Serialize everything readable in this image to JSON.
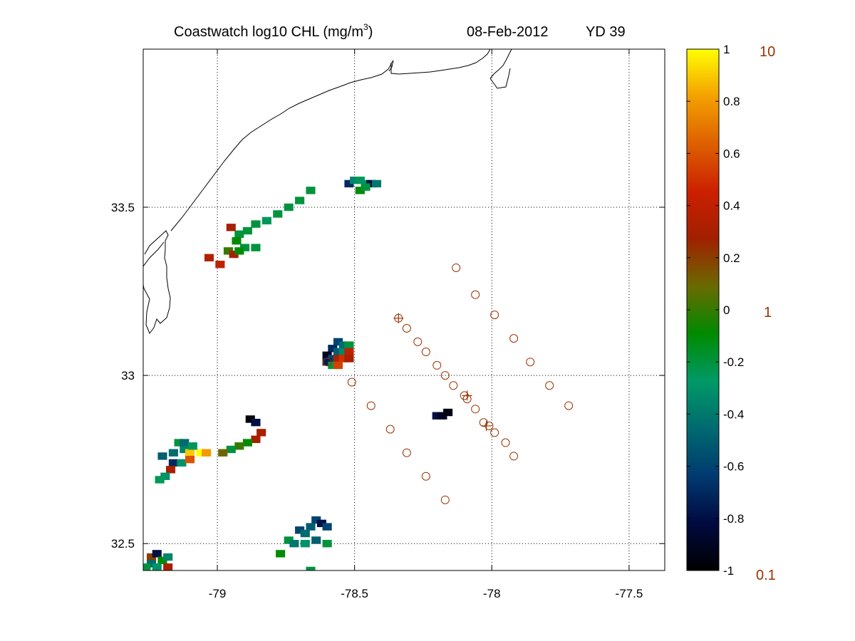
{
  "title": {
    "main": "Coastwatch  log10  CHL (mg/m",
    "superscript": "3",
    "close": ")",
    "date": "08-Feb-2012",
    "yearday": "YD 39"
  },
  "map": {
    "lon_range": [
      -79.27,
      -77.37
    ],
    "lat_range": [
      32.42,
      33.97
    ],
    "x_ticks": [
      -79,
      -78.5,
      -78,
      -77.5
    ],
    "x_tick_labels": [
      "-79",
      "-78.5",
      "-78",
      "-77.5"
    ],
    "y_ticks": [
      32.5,
      33,
      33.5
    ],
    "y_tick_labels": [
      "32.5",
      "33",
      "33.5"
    ],
    "grid": "dotted",
    "coastline_color": "#000000",
    "station_color": "#993300",
    "stations": [
      [
        -78.13,
        33.32
      ],
      [
        -78.06,
        33.24
      ],
      [
        -77.99,
        33.18
      ],
      [
        -77.92,
        33.11
      ],
      [
        -77.86,
        33.04
      ],
      [
        -77.79,
        32.97
      ],
      [
        -77.72,
        32.91
      ],
      [
        -78.34,
        33.17
      ],
      [
        -78.31,
        33.14
      ],
      [
        -78.27,
        33.1
      ],
      [
        -78.24,
        33.07
      ],
      [
        -78.2,
        33.03
      ],
      [
        -78.17,
        33.0
      ],
      [
        -78.14,
        32.97
      ],
      [
        -78.1,
        32.94
      ],
      [
        -78.09,
        32.93
      ],
      [
        -78.06,
        32.9
      ],
      [
        -78.03,
        32.86
      ],
      [
        -78.01,
        32.85
      ],
      [
        -77.99,
        32.83
      ],
      [
        -77.95,
        32.8
      ],
      [
        -77.92,
        32.76
      ],
      [
        -78.51,
        32.98
      ],
      [
        -78.44,
        32.91
      ],
      [
        -78.37,
        32.84
      ],
      [
        -78.31,
        32.77
      ],
      [
        -78.24,
        32.7
      ],
      [
        -78.17,
        32.63
      ],
      [
        -78.6,
        33.04
      ]
    ],
    "cross_stations": [
      [
        -78.34,
        33.17
      ],
      [
        -78.09,
        32.94
      ],
      [
        -78.02,
        32.85
      ]
    ]
  },
  "colorbar": {
    "ticks": [
      1,
      0.8,
      0.6,
      0.4,
      0.2,
      0,
      -0.2,
      -0.4,
      -0.6,
      -0.8,
      -1
    ],
    "tick_labels": [
      "1",
      "0.8",
      "0.6",
      "0.4",
      "0.2",
      "0",
      "-0.2",
      "-0.4",
      "-0.6",
      "-0.8",
      "-1"
    ],
    "range": [
      -1,
      1
    ],
    "right_labels": {
      "top": "10",
      "middle": "1",
      "bottom": "0.1"
    },
    "right_label_color": "#993300",
    "stops": [
      "#000000",
      "#000a40",
      "#003a70",
      "#006a70",
      "#009966",
      "#008a00",
      "#6a6a00",
      "#a02000",
      "#cc2000",
      "#dd6000",
      "#f4a000",
      "#ffff00"
    ]
  },
  "chart_data": {
    "type": "heatmap",
    "title": "Coastwatch  log10  CHL (mg/m3)   08-Feb-2012   YD 39",
    "xlim": [
      -79.27,
      -77.37
    ],
    "ylim": [
      32.42,
      33.97
    ],
    "cell_lon": 0.034,
    "cell_lat": 0.022,
    "cells": [
      [
        -78.52,
        33.57,
        -0.7
      ],
      [
        -78.5,
        33.58,
        -0.35
      ],
      [
        -78.48,
        33.58,
        -0.25
      ],
      [
        -78.46,
        33.57,
        -0.3
      ],
      [
        -78.44,
        33.57,
        -0.8
      ],
      [
        -78.42,
        33.57,
        -0.4
      ],
      [
        -78.48,
        33.55,
        -0.1
      ],
      [
        -78.46,
        33.56,
        -0.2
      ],
      [
        -78.66,
        33.55,
        -0.2
      ],
      [
        -78.7,
        33.52,
        -0.2
      ],
      [
        -78.74,
        33.5,
        -0.2
      ],
      [
        -78.78,
        33.48,
        -0.2
      ],
      [
        -78.82,
        33.46,
        -0.25
      ],
      [
        -78.86,
        33.45,
        -0.2
      ],
      [
        -78.89,
        33.43,
        -0.2
      ],
      [
        -78.92,
        33.42,
        -0.2
      ],
      [
        -78.95,
        33.44,
        0.3
      ],
      [
        -78.93,
        33.4,
        -0.1
      ],
      [
        -78.9,
        33.38,
        -0.2
      ],
      [
        -78.86,
        33.38,
        -0.2
      ],
      [
        -78.96,
        33.37,
        0.0
      ],
      [
        -78.94,
        33.36,
        0.3
      ],
      [
        -78.92,
        33.37,
        -0.1
      ],
      [
        -79.03,
        33.35,
        0.35
      ],
      [
        -78.99,
        33.33,
        0.4
      ],
      [
        -78.56,
        33.1,
        -0.6
      ],
      [
        -78.54,
        33.09,
        -0.45
      ],
      [
        -78.52,
        33.09,
        -0.2
      ],
      [
        -78.58,
        33.08,
        -0.7
      ],
      [
        -78.56,
        33.07,
        -0.5
      ],
      [
        -78.54,
        33.07,
        -0.35
      ],
      [
        -78.52,
        33.07,
        0.4
      ],
      [
        -78.6,
        33.06,
        -0.9
      ],
      [
        -78.58,
        33.05,
        -0.6
      ],
      [
        -78.56,
        33.05,
        0.3
      ],
      [
        -78.54,
        33.05,
        0.5
      ],
      [
        -78.52,
        33.05,
        0.3
      ],
      [
        -78.6,
        33.04,
        -0.75
      ],
      [
        -78.58,
        33.03,
        -0.2
      ],
      [
        -78.56,
        33.03,
        0.55
      ],
      [
        -78.2,
        32.88,
        -0.8
      ],
      [
        -78.18,
        32.88,
        -0.9
      ],
      [
        -78.16,
        32.89,
        -0.95
      ],
      [
        -78.88,
        32.87,
        -1.0
      ],
      [
        -78.86,
        32.86,
        -0.8
      ],
      [
        -78.84,
        32.83,
        0.3
      ],
      [
        -78.86,
        32.81,
        0.3
      ],
      [
        -78.89,
        32.8,
        -0.1
      ],
      [
        -78.92,
        32.79,
        0.0
      ],
      [
        -78.95,
        32.78,
        -0.2
      ],
      [
        -78.98,
        32.77,
        0.1
      ],
      [
        -79.2,
        32.76,
        -0.5
      ],
      [
        -79.16,
        32.77,
        -0.45
      ],
      [
        -79.12,
        32.78,
        -0.35
      ],
      [
        -79.1,
        32.77,
        0.9
      ],
      [
        -79.06,
        32.77,
        1.0
      ],
      [
        -79.04,
        32.77,
        0.8
      ],
      [
        -79.14,
        32.8,
        -0.2
      ],
      [
        -79.12,
        32.8,
        -0.45
      ],
      [
        -79.09,
        32.79,
        -0.25
      ],
      [
        -79.16,
        32.74,
        -0.7
      ],
      [
        -79.13,
        32.74,
        -0.3
      ],
      [
        -79.1,
        32.75,
        0.6
      ],
      [
        -79.17,
        32.72,
        0.3
      ],
      [
        -79.19,
        32.7,
        -0.3
      ],
      [
        -79.21,
        32.69,
        -0.25
      ],
      [
        -78.64,
        32.57,
        -0.6
      ],
      [
        -78.62,
        32.56,
        -0.8
      ],
      [
        -78.6,
        32.55,
        -0.6
      ],
      [
        -78.66,
        32.55,
        -0.5
      ],
      [
        -78.7,
        32.54,
        -0.6
      ],
      [
        -78.68,
        32.53,
        -0.45
      ],
      [
        -78.74,
        32.51,
        -0.2
      ],
      [
        -78.72,
        32.5,
        -0.4
      ],
      [
        -78.68,
        32.5,
        -0.3
      ],
      [
        -78.64,
        32.51,
        -0.5
      ],
      [
        -78.6,
        32.5,
        -0.2
      ],
      [
        -78.77,
        32.47,
        -0.1
      ],
      [
        -78.66,
        32.42,
        -0.2
      ],
      [
        -79.24,
        32.46,
        0.2
      ],
      [
        -79.22,
        32.47,
        -0.8
      ],
      [
        -79.2,
        32.45,
        -0.1
      ],
      [
        -79.18,
        32.46,
        -0.35
      ],
      [
        -79.24,
        32.44,
        -0.45
      ],
      [
        -79.22,
        32.43,
        -0.3
      ],
      [
        -79.18,
        32.43,
        0.3
      ],
      [
        -79.26,
        32.43,
        -0.2
      ]
    ]
  }
}
